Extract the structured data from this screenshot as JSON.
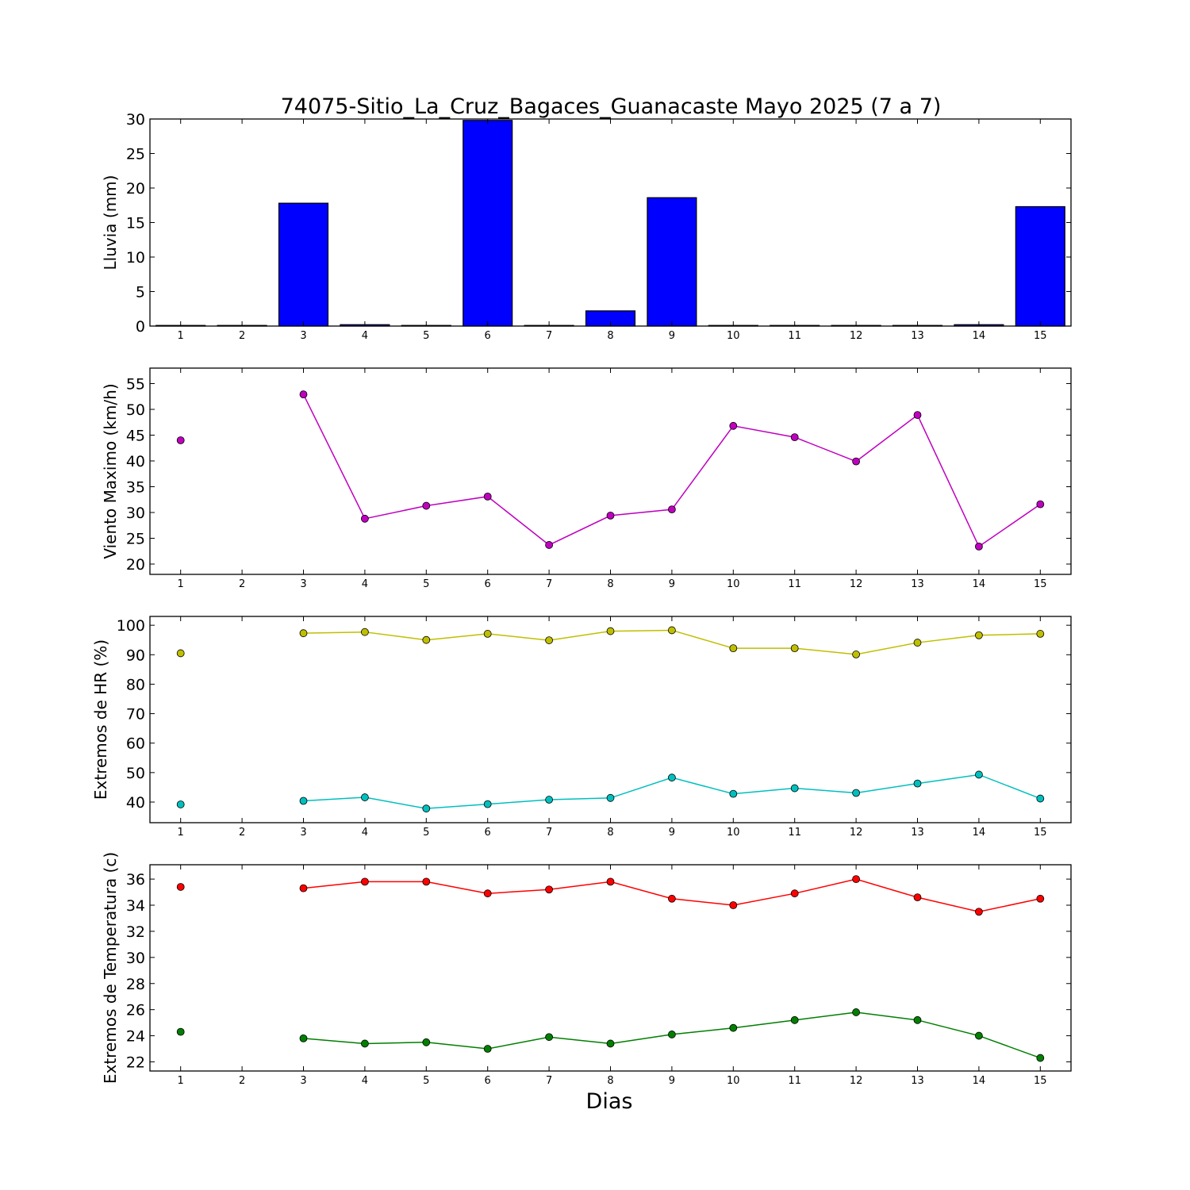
{
  "title": "74075-Sitio_La_Cruz_Bagaces_Guanacaste Mayo 2025  (7 a 7)",
  "xlabel": "Dias",
  "chart_data": [
    {
      "type": "bar",
      "categories": [
        1,
        2,
        3,
        4,
        5,
        6,
        7,
        8,
        9,
        10,
        11,
        12,
        13,
        14,
        15
      ],
      "series": [
        {
          "values": [
            0,
            0,
            17.8,
            0.2,
            0,
            29.8,
            0,
            2.2,
            18.6,
            0,
            0,
            0,
            0,
            0.2,
            17.3
          ],
          "color": "#0000ff"
        }
      ],
      "ylabel": "Lluvia (mm)",
      "xlim": [
        0.5,
        15.5
      ],
      "ylim": [
        0,
        30
      ],
      "yticks": [
        0,
        5,
        10,
        15,
        20,
        25,
        30
      ],
      "xticks": [
        1,
        2,
        3,
        4,
        5,
        6,
        7,
        8,
        9,
        10,
        11,
        12,
        13,
        14,
        15
      ],
      "grid": false
    },
    {
      "type": "line",
      "x": [
        1,
        2,
        3,
        4,
        5,
        6,
        7,
        8,
        9,
        10,
        11,
        12,
        13,
        14,
        15
      ],
      "series": [
        {
          "values": [
            44.0,
            null,
            52.9,
            28.8,
            31.3,
            33.1,
            23.7,
            29.4,
            30.6,
            46.8,
            44.6,
            39.9,
            48.9,
            23.4,
            31.6
          ],
          "color": "#bf00bf"
        }
      ],
      "ylabel": "Viento Maximo (km/h)",
      "xlim": [
        0.5,
        15.5
      ],
      "ylim": [
        18,
        58
      ],
      "yticks": [
        20,
        25,
        30,
        35,
        40,
        45,
        50,
        55
      ],
      "xticks": [
        1,
        2,
        3,
        4,
        5,
        6,
        7,
        8,
        9,
        10,
        11,
        12,
        13,
        14,
        15
      ],
      "grid": false
    },
    {
      "type": "line",
      "x": [
        1,
        2,
        3,
        4,
        5,
        6,
        7,
        8,
        9,
        10,
        11,
        12,
        13,
        14,
        15
      ],
      "series": [
        {
          "values": [
            90.5,
            null,
            97.3,
            97.7,
            95.0,
            97.1,
            94.9,
            98.0,
            98.3,
            92.2,
            92.2,
            90.1,
            94.1,
            96.6,
            97.1
          ],
          "color": "#bfbf00"
        },
        {
          "values": [
            39.2,
            null,
            40.4,
            41.6,
            37.8,
            39.3,
            40.8,
            41.4,
            48.3,
            42.8,
            44.7,
            43.1,
            46.3,
            49.3,
            41.2
          ],
          "color": "#00bfbf"
        }
      ],
      "ylabel": "Extremos de HR (%)",
      "xlim": [
        0.5,
        15.5
      ],
      "ylim": [
        33,
        103
      ],
      "yticks": [
        40,
        50,
        60,
        70,
        80,
        90,
        100
      ],
      "xticks": [
        1,
        2,
        3,
        4,
        5,
        6,
        7,
        8,
        9,
        10,
        11,
        12,
        13,
        14,
        15
      ],
      "grid": false
    },
    {
      "type": "line",
      "x": [
        1,
        2,
        3,
        4,
        5,
        6,
        7,
        8,
        9,
        10,
        11,
        12,
        13,
        14,
        15
      ],
      "series": [
        {
          "values": [
            35.4,
            null,
            35.3,
            35.8,
            35.8,
            34.9,
            35.2,
            35.8,
            34.5,
            34.0,
            34.9,
            36.0,
            34.6,
            33.5,
            34.5
          ],
          "color": "#ff0000"
        },
        {
          "values": [
            24.3,
            null,
            23.8,
            23.4,
            23.5,
            23.0,
            23.9,
            23.4,
            24.1,
            24.6,
            25.2,
            25.8,
            25.2,
            24.0,
            22.3
          ],
          "color": "#007f00"
        }
      ],
      "ylabel": "Extremos de Temperatura (c)",
      "xlim": [
        0.5,
        15.5
      ],
      "ylim": [
        21.3,
        37.1
      ],
      "yticks": [
        22,
        24,
        26,
        28,
        30,
        32,
        34,
        36
      ],
      "xticks": [
        1,
        2,
        3,
        4,
        5,
        6,
        7,
        8,
        9,
        10,
        11,
        12,
        13,
        14,
        15
      ],
      "grid": false
    }
  ]
}
